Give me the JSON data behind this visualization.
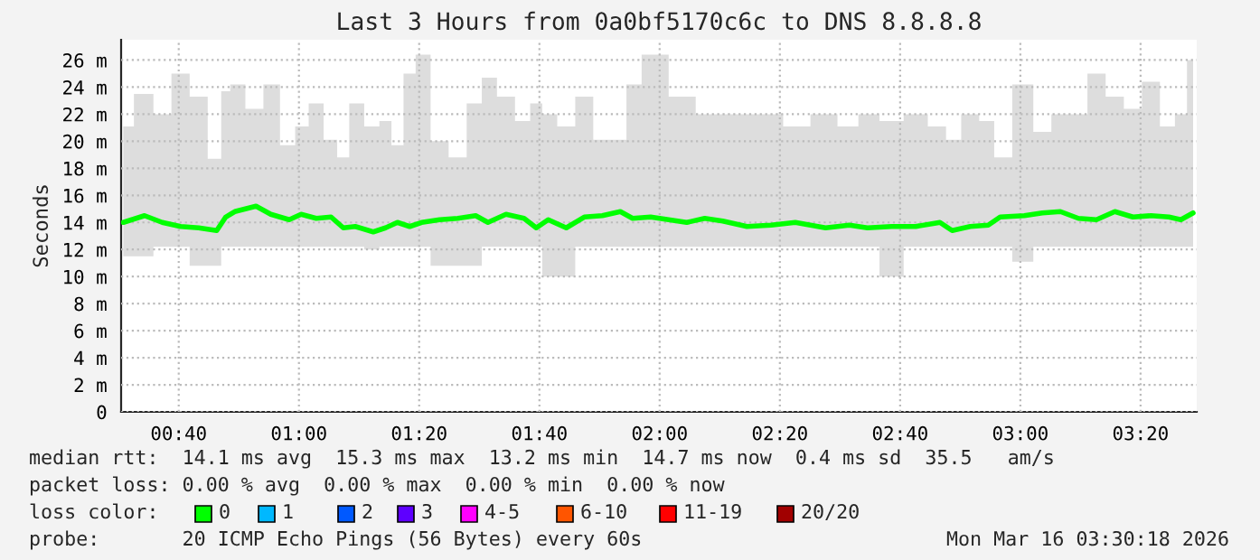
{
  "chart_data": {
    "type": "line",
    "title": "Last 3 Hours from 0a0bf5170c6c to DNS 8.8.8.8",
    "ylabel": "Seconds",
    "x": [
      0.513,
      0.572,
      0.621,
      0.672,
      0.722,
      0.772,
      0.797,
      0.822,
      0.881,
      0.922,
      0.973,
      1.006,
      1.048,
      1.089,
      1.123,
      1.156,
      1.206,
      1.24,
      1.273,
      1.307,
      1.34,
      1.39,
      1.44,
      1.49,
      1.524,
      1.574,
      1.624,
      1.658,
      1.691,
      1.741,
      1.791,
      1.841,
      1.891,
      1.925,
      1.975,
      2.075,
      2.125,
      2.175,
      2.242,
      2.309,
      2.376,
      2.46,
      2.526,
      2.576,
      2.643,
      2.71,
      2.777,
      2.811,
      2.861,
      2.911,
      2.944,
      3.011,
      3.061,
      3.111,
      3.161,
      3.211,
      3.262,
      3.312,
      3.362,
      3.412,
      3.445,
      3.479
    ],
    "series": [
      {
        "color": "#00ff00",
        "values": [
          14.0,
          14.5,
          14.0,
          13.7,
          13.6,
          13.4,
          14.4,
          14.8,
          15.2,
          14.6,
          14.2,
          14.6,
          14.3,
          14.4,
          13.6,
          13.7,
          13.3,
          13.6,
          14.0,
          13.7,
          14.0,
          14.2,
          14.3,
          14.5,
          14.0,
          14.6,
          14.3,
          13.6,
          14.2,
          13.6,
          14.4,
          14.5,
          14.8,
          14.3,
          14.4,
          14.0,
          14.3,
          14.1,
          13.7,
          13.8,
          14.0,
          13.6,
          13.8,
          13.6,
          13.7,
          13.7,
          14.0,
          13.4,
          13.7,
          13.8,
          14.4,
          14.5,
          14.7,
          14.8,
          14.3,
          14.2,
          14.8,
          14.4,
          14.5,
          14.4,
          14.2,
          14.7
        ],
        "lower": [
          11.5,
          11.5,
          12.2,
          12.2,
          10.8,
          10.8,
          12.2,
          12.2,
          12.2,
          12.2,
          12.2,
          12.2,
          12.2,
          12.2,
          12.2,
          12.2,
          12.0,
          12.2,
          12.2,
          12.2,
          12.2,
          10.8,
          10.8,
          10.8,
          12.2,
          12.2,
          12.2,
          12.2,
          10.0,
          10.0,
          12.2,
          12.2,
          12.2,
          12.2,
          12.2,
          12.2,
          12.2,
          12.2,
          12.2,
          12.2,
          12.2,
          12.2,
          12.2,
          12.2,
          10.0,
          12.2,
          12.2,
          12.2,
          12.2,
          12.2,
          12.2,
          11.1,
          12.2,
          12.2,
          12.2,
          12.2,
          12.2,
          12.2,
          12.2,
          12.2,
          12.2,
          12.2
        ],
        "upper": [
          21.1,
          23.5,
          22.0,
          25.0,
          23.3,
          18.7,
          23.7,
          24.2,
          22.4,
          24.2,
          19.7,
          21.1,
          22.8,
          20.1,
          18.8,
          22.8,
          21.1,
          21.5,
          19.7,
          25.0,
          26.4,
          20.0,
          18.8,
          22.8,
          24.7,
          23.3,
          21.5,
          22.8,
          22.0,
          21.1,
          23.3,
          20.1,
          20.1,
          24.2,
          26.4,
          23.3,
          22.0,
          22.0,
          22.0,
          22.0,
          21.1,
          22.0,
          21.1,
          22.0,
          21.5,
          22.0,
          21.1,
          20.1,
          22.0,
          21.5,
          18.8,
          24.2,
          20.7,
          22.0,
          22.0,
          25.0,
          23.3,
          22.4,
          24.4,
          21.1,
          22.0,
          26.0
        ]
      }
    ],
    "xlim": [
      0.507,
      3.489
    ],
    "xticks": [
      {
        "value": 0.6667,
        "label": "00:40"
      },
      {
        "value": 1.0,
        "label": "01:00"
      },
      {
        "value": 1.3333,
        "label": "01:20"
      },
      {
        "value": 1.6667,
        "label": "01:40"
      },
      {
        "value": 2.0,
        "label": "02:00"
      },
      {
        "value": 2.3333,
        "label": "02:20"
      },
      {
        "value": 2.6667,
        "label": "02:40"
      },
      {
        "value": 3.0,
        "label": "03:00"
      },
      {
        "value": 3.3333,
        "label": "03:20"
      }
    ],
    "ylim": [
      0,
      27.5
    ],
    "yticks": [
      0,
      {
        "value": 2,
        "label": "2 m"
      },
      {
        "value": 4,
        "label": "4 m"
      },
      {
        "value": 6,
        "label": "6 m"
      },
      {
        "value": 8,
        "label": "8 m"
      },
      {
        "value": 10,
        "label": "10 m"
      },
      {
        "value": 12,
        "label": "12 m"
      },
      {
        "value": 14,
        "label": "14 m"
      },
      {
        "value": 16,
        "label": "16 m"
      },
      {
        "value": 18,
        "label": "18 m"
      },
      {
        "value": 20,
        "label": "20 m"
      },
      {
        "value": 22,
        "label": "22 m"
      },
      {
        "value": 24,
        "label": "24 m"
      },
      {
        "value": 26,
        "label": "26 m"
      }
    ],
    "grid": true,
    "marker": "none",
    "line_style": "solid",
    "annotations": [
      "median rtt:  14.1 ms avg  15.3 ms max  13.2 ms min  14.7 ms now  0.4 ms sd  35.5   am/s",
      "packet loss: 0.00 % avg  0.00 % max  0.00 % min  0.00 % now",
      "loss color:",
      "0",
      "1",
      "2",
      "3",
      "4-5",
      "6-10",
      "11-19",
      "20/20",
      "probe:       20 ICMP Echo Pings (56 Bytes) every 60s",
      "Mon Mar 16 03:30:18 2026"
    ]
  }
}
